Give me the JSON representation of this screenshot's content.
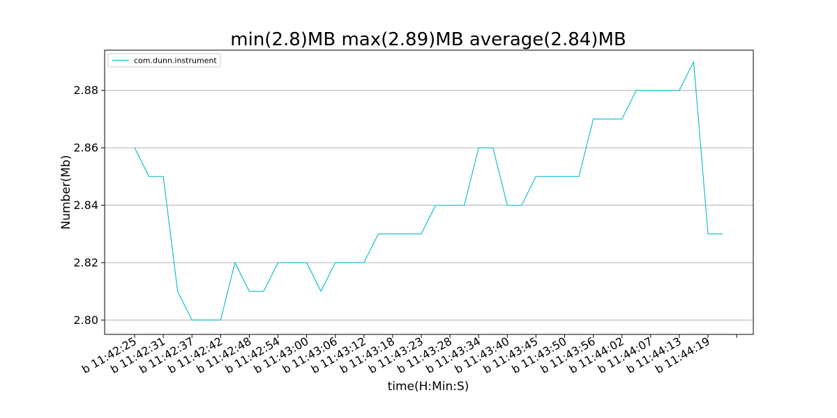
{
  "chart_data": {
    "type": "line",
    "title": "min(2.8)MB max(2.89)MB average(2.84)MB",
    "xlabel": "time(H:Min:S)",
    "ylabel": "Number(Mb)",
    "ylim": [
      2.795,
      2.894
    ],
    "yticks": [
      2.8,
      2.82,
      2.84,
      2.86,
      2.88
    ],
    "ytick_labels": [
      "2.80",
      "2.82",
      "2.84",
      "2.86",
      "2.88"
    ],
    "xtick_labels": [
      "b 11:42:25",
      "b 11:42:31",
      "b 11:42:37",
      "b 11:42:42",
      "b 11:42:48",
      "b 11:42:54",
      "b 11:43:00",
      "b 11:43:06",
      "b 11:43:12",
      "b 11:43:18",
      "b 11:43:23",
      "b 11:43:28",
      "b 11:43:34",
      "b 11:43:40",
      "b 11:43:45",
      "b 11:43:50",
      "b 11:43:56",
      "b 11:44:02",
      "b 11:44:07",
      "b 11:44:13",
      "b 11:44:19"
    ],
    "xtick_every": 2,
    "grid": "y",
    "legend_position": "upper-left",
    "series": [
      {
        "name": "com.dunn.instrument",
        "color": "#17becf",
        "values": [
          2.86,
          2.85,
          2.85,
          2.81,
          2.8,
          2.8,
          2.8,
          2.82,
          2.81,
          2.81,
          2.82,
          2.82,
          2.82,
          2.81,
          2.82,
          2.82,
          2.82,
          2.83,
          2.83,
          2.83,
          2.83,
          2.84,
          2.84,
          2.84,
          2.86,
          2.86,
          2.84,
          2.84,
          2.85,
          2.85,
          2.85,
          2.85,
          2.87,
          2.87,
          2.87,
          2.88,
          2.88,
          2.88,
          2.88,
          2.89,
          2.83,
          2.83
        ]
      }
    ]
  }
}
